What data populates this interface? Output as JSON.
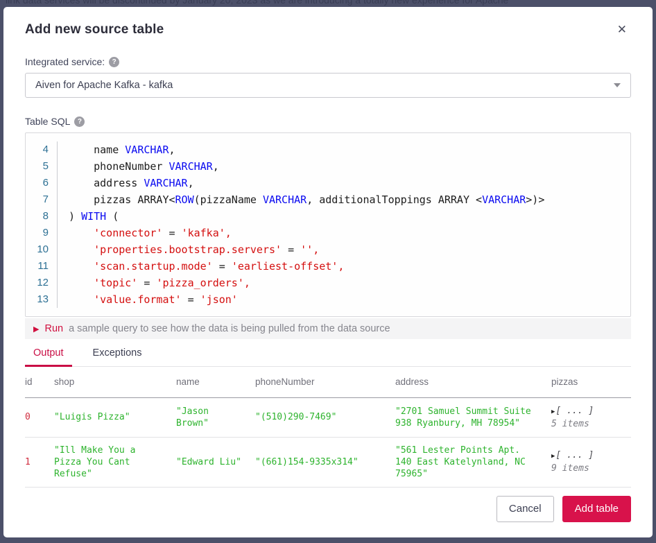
{
  "backdrop": {
    "text": "link data services will be discontinued by January 20, 2023 as we are introducing a totally new experience for Apache"
  },
  "modal": {
    "title": "Add new source table",
    "close_icon": "✕"
  },
  "integrated_service": {
    "label": "Integrated service:",
    "help_icon": "?",
    "value": "Aiven for Apache Kafka - kafka"
  },
  "table_sql": {
    "label": "Table SQL",
    "help_icon": "?"
  },
  "code": {
    "lines": [
      {
        "num": "4",
        "segments": [
          {
            "c": "p",
            "t": "    name "
          },
          {
            "c": "k",
            "t": "VARCHAR"
          },
          {
            "c": "p",
            "t": ","
          }
        ]
      },
      {
        "num": "5",
        "segments": [
          {
            "c": "p",
            "t": "    phoneNumber "
          },
          {
            "c": "k",
            "t": "VARCHAR"
          },
          {
            "c": "p",
            "t": ","
          }
        ]
      },
      {
        "num": "6",
        "segments": [
          {
            "c": "p",
            "t": "    address "
          },
          {
            "c": "k",
            "t": "VARCHAR"
          },
          {
            "c": "p",
            "t": ","
          }
        ]
      },
      {
        "num": "7",
        "segments": [
          {
            "c": "p",
            "t": "    pizzas ARRAY<"
          },
          {
            "c": "k",
            "t": "ROW"
          },
          {
            "c": "p",
            "t": "(pizzaName "
          },
          {
            "c": "k",
            "t": "VARCHAR"
          },
          {
            "c": "p",
            "t": ", additionalToppings ARRAY <"
          },
          {
            "c": "k",
            "t": "VARCHAR"
          },
          {
            "c": "p",
            "t": ">)>"
          }
        ]
      },
      {
        "num": "8",
        "segments": [
          {
            "c": "p",
            "t": ") "
          },
          {
            "c": "k",
            "t": "WITH"
          },
          {
            "c": "p",
            "t": " ("
          }
        ]
      },
      {
        "num": "9",
        "segments": [
          {
            "c": "p",
            "t": "    "
          },
          {
            "c": "s",
            "t": "'connector'"
          },
          {
            "c": "p",
            "t": " = "
          },
          {
            "c": "s",
            "t": "'kafka',"
          }
        ]
      },
      {
        "num": "10",
        "segments": [
          {
            "c": "p",
            "t": "    "
          },
          {
            "c": "s",
            "t": "'properties.bootstrap.servers'"
          },
          {
            "c": "p",
            "t": " = "
          },
          {
            "c": "s",
            "t": "'',"
          }
        ]
      },
      {
        "num": "11",
        "segments": [
          {
            "c": "p",
            "t": "    "
          },
          {
            "c": "s",
            "t": "'scan.startup.mode'"
          },
          {
            "c": "p",
            "t": " = "
          },
          {
            "c": "s",
            "t": "'earliest-offset',"
          }
        ]
      },
      {
        "num": "12",
        "segments": [
          {
            "c": "p",
            "t": "    "
          },
          {
            "c": "s",
            "t": "'topic'"
          },
          {
            "c": "p",
            "t": " = "
          },
          {
            "c": "s",
            "t": "'pizza_orders',"
          }
        ]
      },
      {
        "num": "13",
        "segments": [
          {
            "c": "p",
            "t": "    "
          },
          {
            "c": "s",
            "t": "'value.format'"
          },
          {
            "c": "p",
            "t": " = "
          },
          {
            "c": "s",
            "t": "'json'"
          }
        ]
      }
    ]
  },
  "run_bar": {
    "play_icon": "▶",
    "run_label": "Run",
    "description": "a sample query to see how the data is being pulled from the data source"
  },
  "tabs": [
    {
      "label": "Output",
      "active": true
    },
    {
      "label": "Exceptions",
      "active": false
    }
  ],
  "result_table": {
    "columns": [
      "id",
      "shop",
      "name",
      "phoneNumber",
      "address",
      "pizzas"
    ],
    "rows": [
      {
        "id": "0",
        "shop": "\"Luigis Pizza\"",
        "name": "\"Jason Brown\"",
        "phoneNumber": "\"(510)290-7469\"",
        "address": "\"2701 Samuel Summit Suite 938 Ryanbury, MH 78954\"",
        "pizzas_preview": "[ ... ]",
        "pizzas_count": "5 items"
      },
      {
        "id": "1",
        "shop": "\"Ill Make You a Pizza You Cant Refuse\"",
        "name": "\"Edward Liu\"",
        "phoneNumber": "\"(661)154-9335x314\"",
        "address": "\"561 Lester Points Apt. 140 East Katelynland, NC 75965\"",
        "pizzas_preview": "[ ... ]",
        "pizzas_count": "9 items"
      }
    ]
  },
  "footer": {
    "cancel_label": "Cancel",
    "submit_label": "Add table"
  },
  "colors": {
    "accent_red": "#d8124b",
    "tab_red": "#c90e45",
    "keyword_blue": "#0a0af0",
    "string_red": "#d40f0f",
    "line_number_teal": "#2d7094",
    "data_green": "#2db32d",
    "id_red": "#d02c3e",
    "backdrop_navy": "#4c5069"
  }
}
